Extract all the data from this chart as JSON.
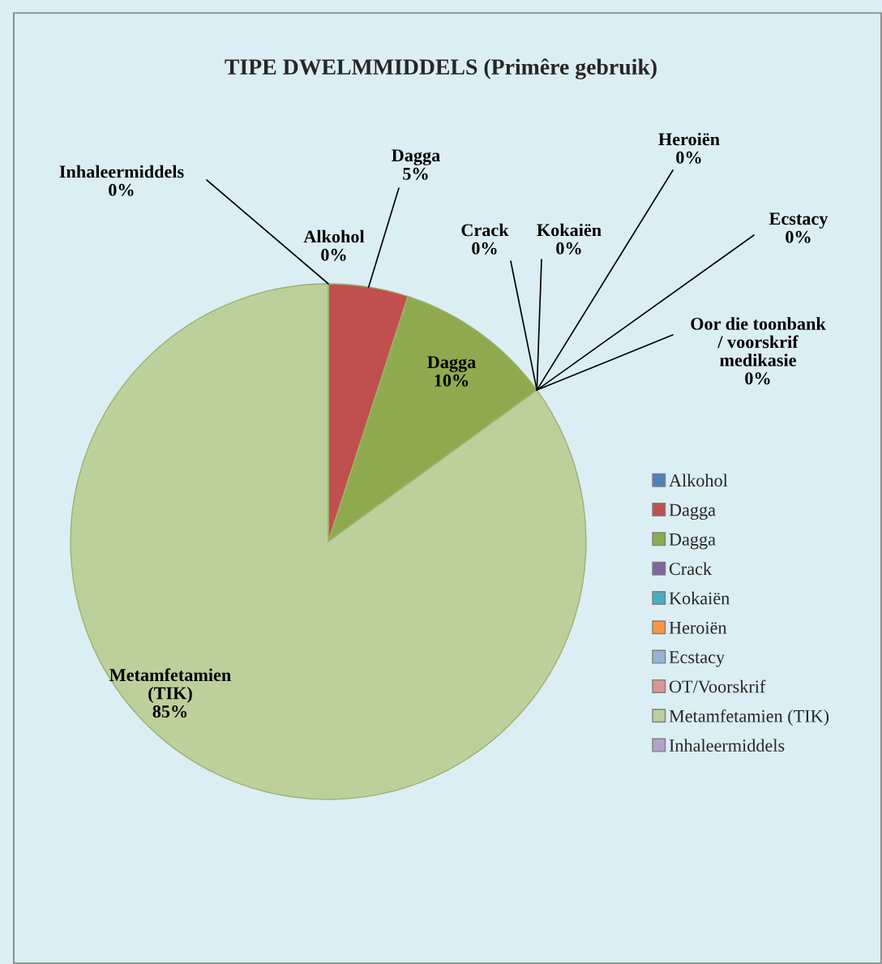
{
  "chart_data": {
    "type": "pie",
    "title": "TIPE DWELMMIDDELS (Primêre gebruik)",
    "categories": [
      "Alkohol",
      "Dagga",
      "Dagga",
      "Crack",
      "Kokaiën",
      "Heroiën",
      "Ecstacy",
      "OT/Voorskrif",
      "Metamfetamien (TIK)",
      "Inhaleermiddels"
    ],
    "values": [
      0,
      5,
      10,
      0,
      0,
      0,
      0,
      0,
      85,
      0
    ],
    "value_labels": [
      "0%",
      "5%",
      "10%",
      "0%",
      "0%",
      "0%",
      "0%",
      "0%",
      "85%",
      "0%"
    ],
    "colors": [
      "#4f81bd",
      "#c0504d",
      "#8faa4e",
      "#8064a2",
      "#4bacc6",
      "#f79646",
      "#95b3d7",
      "#d99694",
      "#bcd09b",
      "#b3a2c7"
    ],
    "annotations": [
      {
        "text": "Oor die toonbank\n/ voorskrif\nmedikasie",
        "x": "OT/Voorskrif"
      },
      {
        "text": "Metamfetamien\n(TIK)",
        "x": "Metamfetamien (TIK)"
      }
    ],
    "legend": "right"
  }
}
